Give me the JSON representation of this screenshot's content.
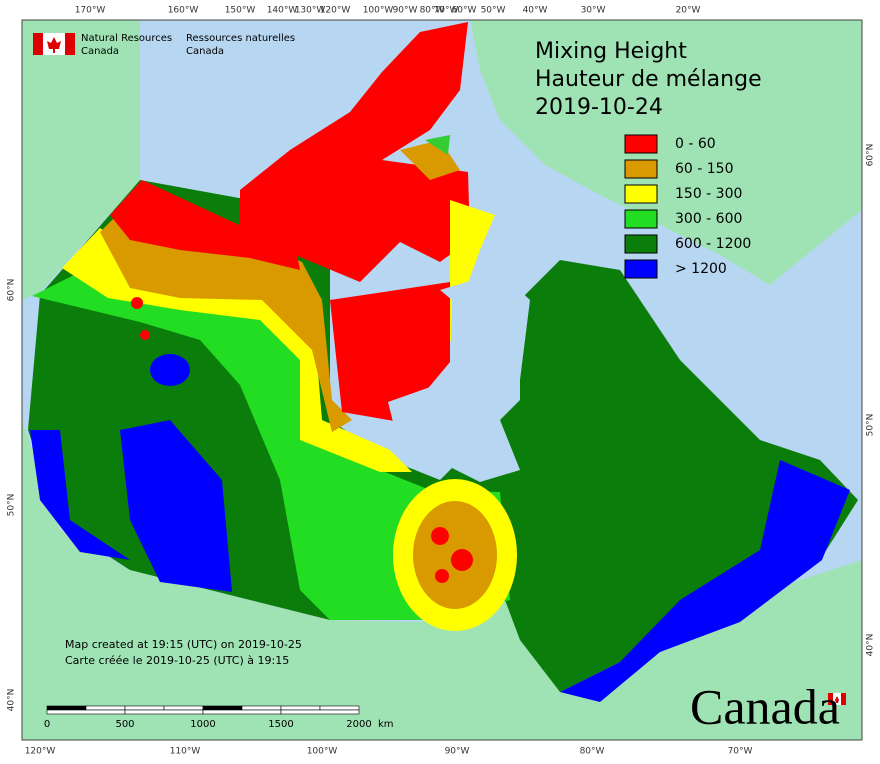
{
  "header": {
    "agency_en": [
      "Natural Resources",
      "Canada"
    ],
    "agency_fr": [
      "Ressources naturelles",
      "Canada"
    ]
  },
  "title": {
    "en": "Mixing Height",
    "fr": "Hauteur de mélange",
    "date": "2019-10-24"
  },
  "legend": [
    {
      "label": "0 - 60",
      "color": "#ff0000"
    },
    {
      "label": "60 - 150",
      "color": "#d99a00"
    },
    {
      "label": "150 - 300",
      "color": "#ffff00"
    },
    {
      "label": "300 - 600",
      "color": "#22dd22"
    },
    {
      "label": "600 - 1200",
      "color": "#0a7d0a"
    },
    {
      "label": "> 1200",
      "color": "#0000ff"
    }
  ],
  "graticule": {
    "top": [
      "170°W",
      "160°W",
      "150°W",
      "140°W",
      "130°W",
      "120°W",
      "100°W",
      "90°W",
      "80°W",
      "70°W",
      "60°W",
      "50°W",
      "40°W",
      "30°W",
      "20°W"
    ],
    "bottom": [
      "120°W",
      "110°W",
      "100°W",
      "90°W",
      "80°W",
      "70°W"
    ],
    "left": [
      "60°N",
      "50°N",
      "40°N"
    ],
    "right": [
      "60°N",
      "50°N",
      "40°N"
    ]
  },
  "notes": [
    "Map created at 19:15 (UTC) on 2019-10-25",
    "Carte créée le 2019-10-25 (UTC) à 19:15"
  ],
  "scale": {
    "labels": [
      "0",
      "500",
      "1000",
      "1500",
      "2000"
    ],
    "unit": "km"
  },
  "wordmark": "Canada"
}
